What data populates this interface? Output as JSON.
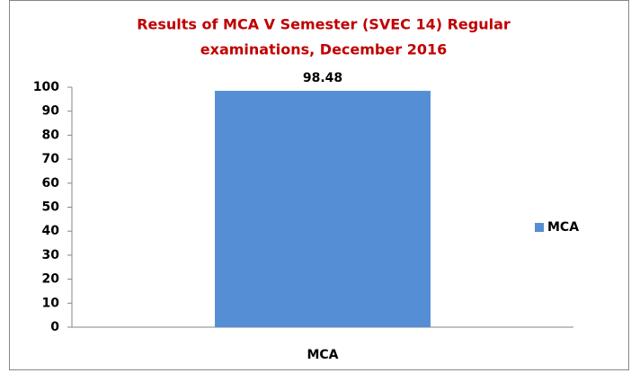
{
  "chart_data": {
    "type": "bar",
    "title": [
      "Results of MCA V Semester (SVEC 14) Regular",
      "examinations,  December 2016"
    ],
    "categories": [
      "MCA"
    ],
    "series": [
      {
        "name": "MCA",
        "color": "#558ed5",
        "values": [
          98.48
        ]
      }
    ],
    "ylim": [
      0,
      100
    ],
    "yticks": [
      0,
      10,
      20,
      30,
      40,
      50,
      60,
      70,
      80,
      90,
      100
    ],
    "grid": false,
    "legend": "right",
    "data_labels": true
  }
}
